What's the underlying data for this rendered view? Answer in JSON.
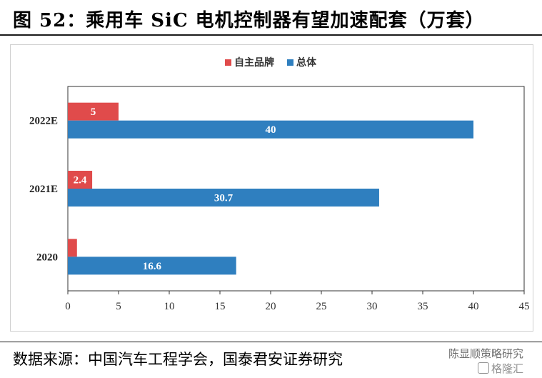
{
  "header": {
    "title": "图 52：乘用车 SiC 电机控制器有望加速配套（万套）"
  },
  "chart_data": {
    "type": "bar",
    "orientation": "horizontal",
    "categories": [
      "2022E",
      "2021E",
      "2020"
    ],
    "series": [
      {
        "name": "自主品牌",
        "color": "#e04b4b",
        "values": [
          5,
          2.4,
          0.9
        ],
        "labels": [
          "5",
          "2.4",
          ""
        ]
      },
      {
        "name": "总体",
        "color": "#2f7fbf",
        "values": [
          40,
          30.7,
          16.6
        ],
        "labels": [
          "40",
          "30.7",
          "16.6"
        ]
      }
    ],
    "xlim": [
      0,
      45
    ],
    "xticks": [
      "0",
      "5",
      "10",
      "15",
      "20",
      "25",
      "30",
      "35",
      "40",
      "45"
    ],
    "legend_position": "top-center",
    "title": "",
    "xlabel": "",
    "ylabel": ""
  },
  "footer": {
    "source": "数据来源：中国汽车工程学会，国泰君安证券研究",
    "watermark_line1": "陈显顺策略研究",
    "watermark_line2": "格隆汇"
  }
}
